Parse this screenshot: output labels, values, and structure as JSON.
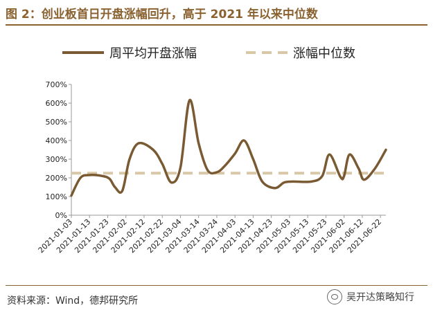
{
  "header": {
    "title": "图 2：创业板首日开盘涨幅回升，高于 2021 年以来中位数"
  },
  "footer": {
    "source": "资料来源：Wind，德邦研究所",
    "watermark": "吴开达策略知行"
  },
  "colors": {
    "line": "#7a5a32",
    "median": "#d8c8a8",
    "accent": "#8a6230"
  },
  "chart_data": {
    "type": "line",
    "title": "",
    "xlabel": "",
    "ylabel": "",
    "ylim": [
      0,
      700
    ],
    "yticks": [
      0,
      100,
      200,
      300,
      400,
      500,
      600,
      700
    ],
    "ytick_labels": [
      "0%",
      "100%",
      "200%",
      "300%",
      "400%",
      "500%",
      "600%",
      "700%"
    ],
    "grid": false,
    "legend_position": "top",
    "x_tick_labels": [
      "2021-01-03",
      "2021-01-13",
      "2021-01-23",
      "2021-02-02",
      "2021-02-12",
      "2021-02-22",
      "2021-03-04",
      "2021-03-14",
      "2021-03-24",
      "2021-04-03",
      "2021-04-13",
      "2021-04-23",
      "2021-05-03",
      "2021-05-13",
      "2021-05-23",
      "2021-06-02",
      "2021-06-12",
      "2021-06-22"
    ],
    "series": [
      {
        "name": "周平均开盘涨幅",
        "x": [
          "2021-01-03",
          "2021-01-08",
          "2021-01-13",
          "2021-01-20",
          "2021-01-24",
          "2021-01-27",
          "2021-01-31",
          "2021-02-04",
          "2021-02-09",
          "2021-02-17",
          "2021-02-22",
          "2021-02-27",
          "2021-03-04",
          "2021-03-09",
          "2021-03-14",
          "2021-03-19",
          "2021-03-24",
          "2021-03-28",
          "2021-04-03",
          "2021-04-08",
          "2021-04-13",
          "2021-04-18",
          "2021-04-25",
          "2021-04-30",
          "2021-05-05",
          "2021-05-15",
          "2021-05-21",
          "2021-05-25",
          "2021-05-31",
          "2021-06-02",
          "2021-06-05",
          "2021-06-10",
          "2021-06-13",
          "2021-06-19",
          "2021-06-25"
        ],
        "values": [
          105,
          200,
          215,
          210,
          195,
          150,
          130,
          300,
          385,
          350,
          275,
          175,
          255,
          615,
          385,
          240,
          230,
          260,
          330,
          400,
          300,
          180,
          145,
          175,
          180,
          180,
          210,
          325,
          205,
          210,
          325,
          250,
          190,
          250,
          350
        ]
      },
      {
        "name": "涨幅中位数",
        "x": [
          "2021-01-03",
          "2021-06-25"
        ],
        "values": [
          225,
          225
        ]
      }
    ]
  }
}
